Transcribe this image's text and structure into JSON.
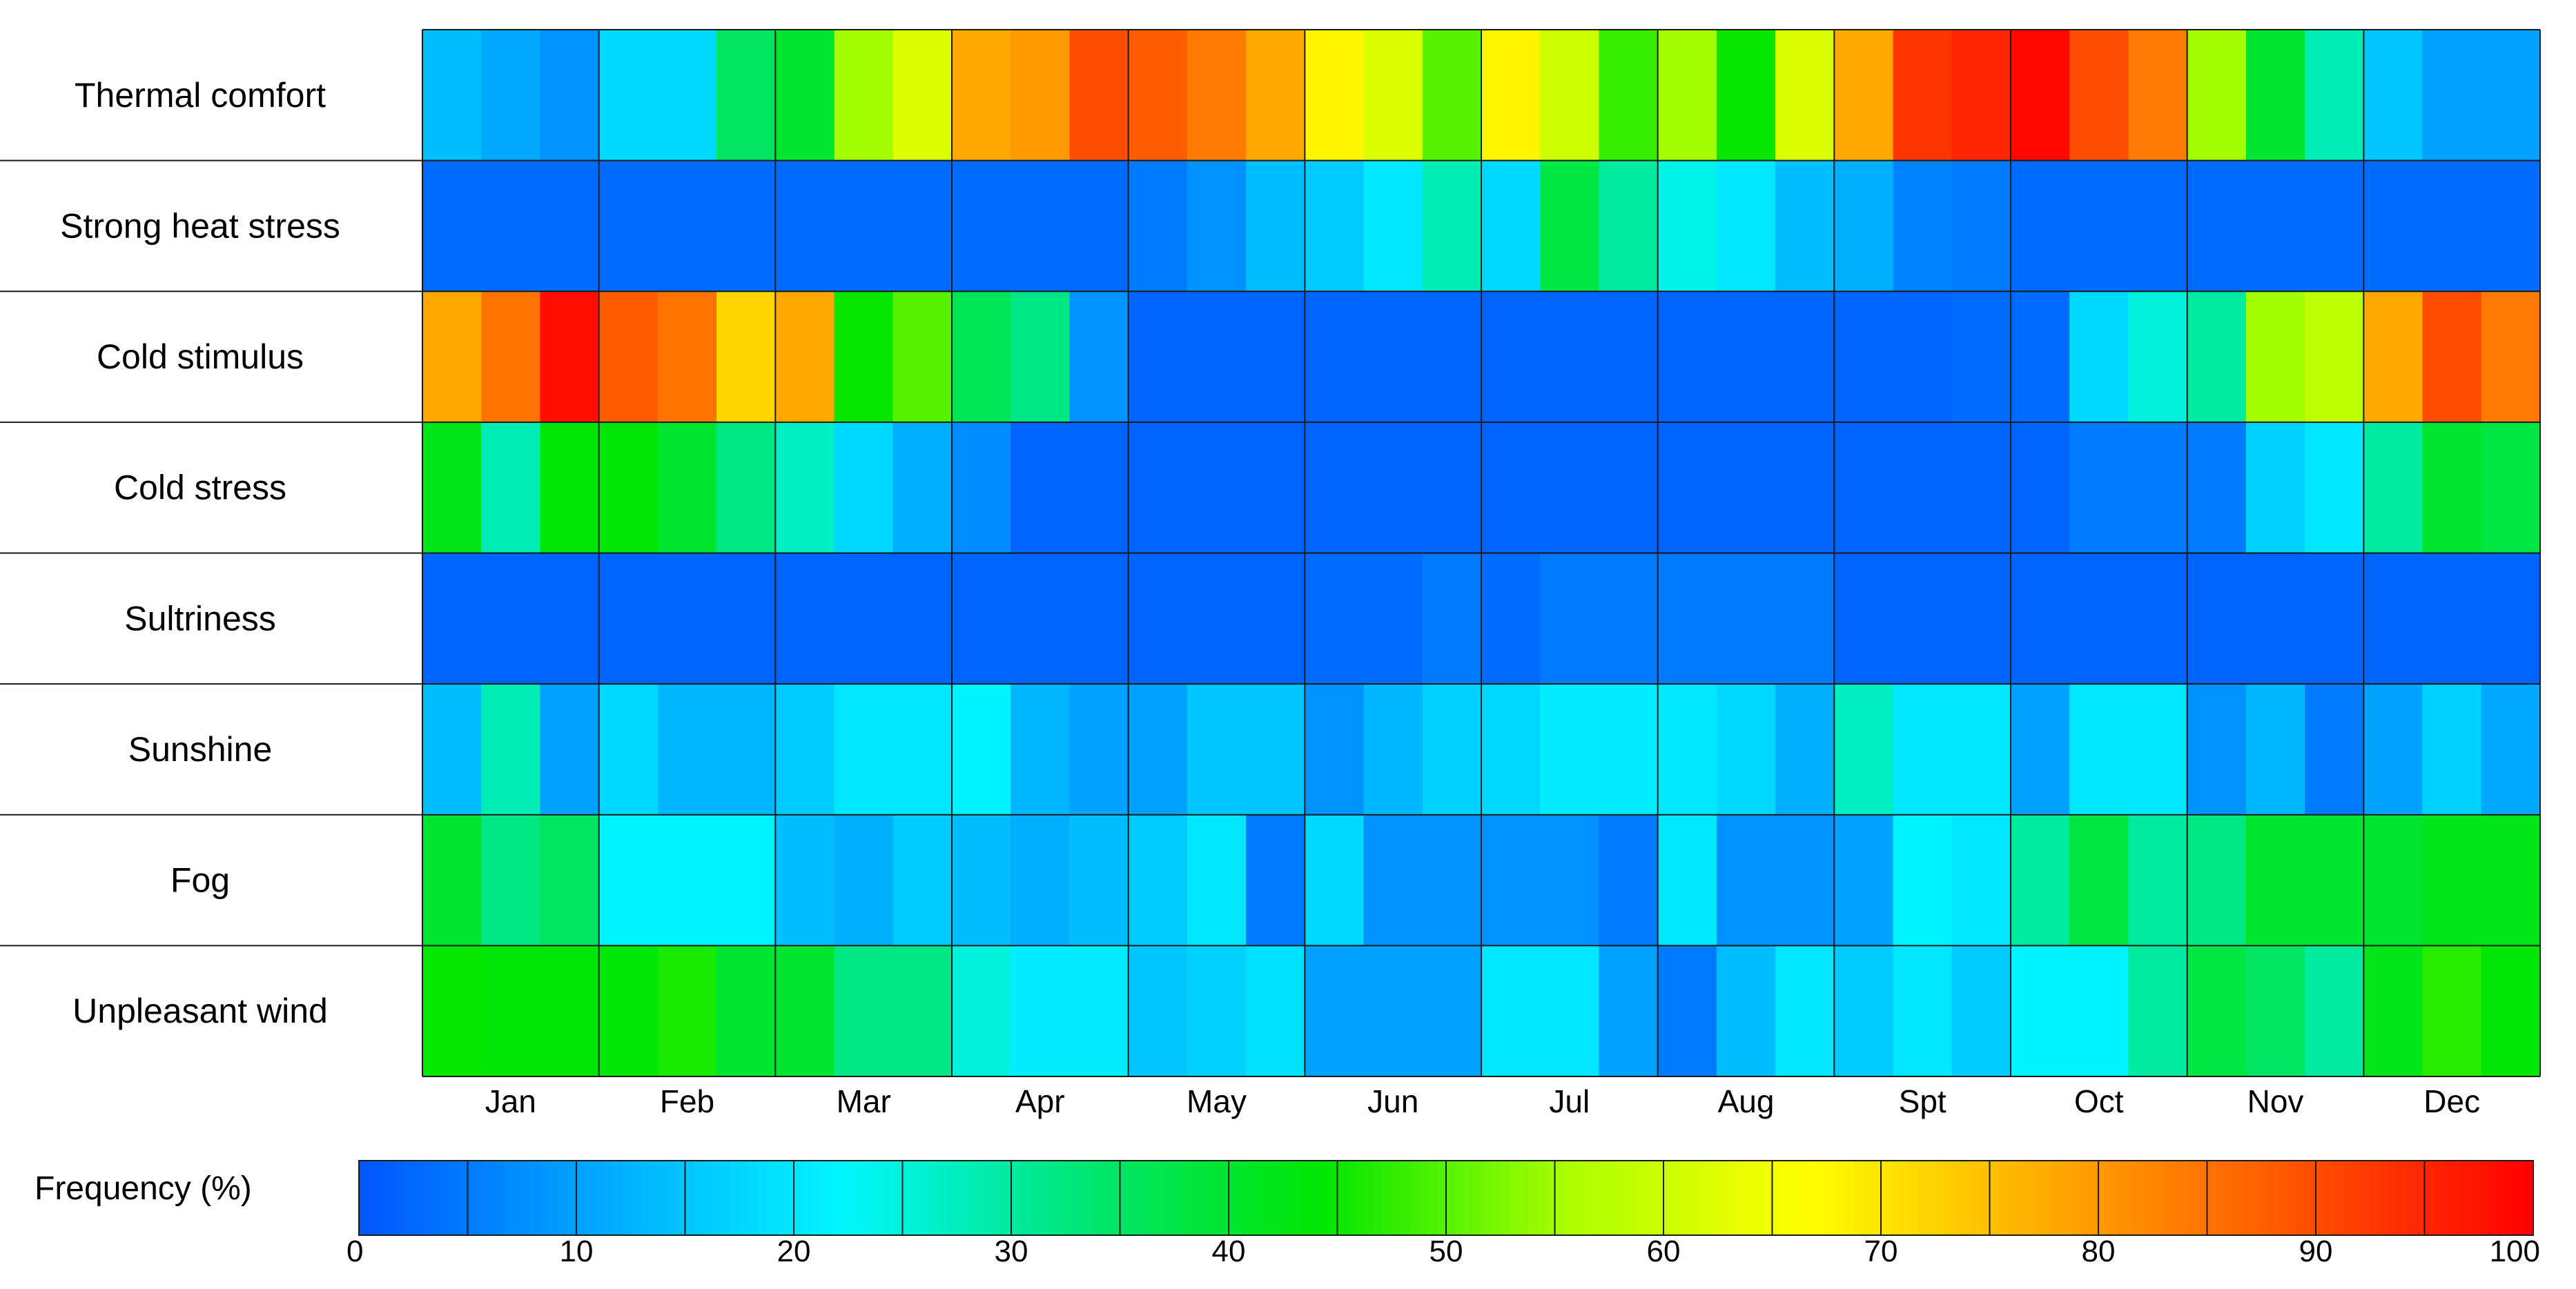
{
  "chart_data": {
    "type": "heatmap",
    "title": "",
    "xlabel": "",
    "ylabel": "",
    "rows": [
      "Thermal comfort",
      "Strong heat stress",
      "Cold stimulus",
      "Cold stress",
      "Sultriness",
      "Sunshine",
      "Fog",
      "Unpleasant wind"
    ],
    "months": [
      "Jan",
      "Feb",
      "Mar",
      "Apr",
      "May",
      "Jun",
      "Jul",
      "Aug",
      "Spt",
      "Oct",
      "Nov",
      "Dec"
    ],
    "decades_per_month": 3,
    "values": [
      [
        14,
        11,
        8,
        18,
        18,
        35,
        40,
        55,
        62,
        78,
        80,
        90,
        88,
        84,
        78,
        68,
        62,
        50,
        68,
        60,
        48,
        55,
        45,
        62,
        78,
        93,
        95,
        99,
        90,
        84,
        55,
        40,
        28,
        15,
        10,
        10
      ],
      [
        3,
        3,
        3,
        3,
        3,
        3,
        3,
        3,
        3,
        3,
        3,
        3,
        5,
        8,
        14,
        16,
        20,
        28,
        18,
        38,
        30,
        24,
        20,
        14,
        12,
        6,
        5,
        3,
        3,
        3,
        3,
        3,
        3,
        3,
        3,
        3
      ],
      [
        78,
        85,
        98,
        88,
        85,
        72,
        78,
        45,
        50,
        36,
        32,
        8,
        2,
        2,
        2,
        2,
        2,
        2,
        2,
        2,
        2,
        2,
        2,
        2,
        2,
        2,
        3,
        3,
        18,
        25,
        30,
        55,
        58,
        78,
        90,
        84
      ],
      [
        42,
        28,
        44,
        44,
        40,
        32,
        27,
        18,
        12,
        7,
        2,
        2,
        2,
        2,
        2,
        2,
        2,
        2,
        2,
        2,
        2,
        2,
        2,
        2,
        2,
        2,
        2,
        2,
        5,
        5,
        5,
        17,
        20,
        30,
        40,
        38
      ],
      [
        2,
        2,
        2,
        2,
        2,
        2,
        2,
        2,
        2,
        2,
        2,
        2,
        2,
        2,
        2,
        3,
        3,
        5,
        3,
        5,
        5,
        5,
        5,
        5,
        2,
        2,
        2,
        2,
        2,
        2,
        2,
        2,
        2,
        2,
        2,
        2
      ],
      [
        14,
        28,
        10,
        18,
        13,
        13,
        16,
        20,
        20,
        22,
        13,
        10,
        10,
        15,
        15,
        8,
        13,
        17,
        18,
        21,
        21,
        20,
        18,
        12,
        27,
        20,
        20,
        10,
        20,
        20,
        8,
        13,
        5,
        10,
        17,
        11
      ],
      [
        40,
        32,
        35,
        22,
        22,
        22,
        14,
        12,
        16,
        14,
        12,
        14,
        16,
        20,
        5,
        18,
        8,
        8,
        8,
        8,
        5,
        20,
        8,
        8,
        10,
        22,
        20,
        30,
        38,
        30,
        32,
        40,
        40,
        40,
        42,
        42
      ],
      [
        45,
        44,
        44,
        44,
        46,
        40,
        40,
        32,
        32,
        25,
        21,
        21,
        15,
        17,
        19,
        10,
        10,
        10,
        20,
        20,
        10,
        5,
        14,
        20,
        16,
        20,
        16,
        22,
        22,
        30,
        38,
        35,
        30,
        42,
        47,
        44
      ]
    ],
    "colorbar": {
      "label": "Frequency (%)",
      "min": 0,
      "max": 100,
      "step": 5,
      "ticks": [
        0,
        10,
        20,
        30,
        40,
        50,
        60,
        70,
        80,
        90,
        100
      ],
      "colors": [
        "#0055ff",
        "#00aaff",
        "#00f6ff",
        "#00e673",
        "#00e600",
        "#aaff00",
        "#ffff00",
        "#ffaa00",
        "#ff5500",
        "#ff0000"
      ]
    }
  }
}
